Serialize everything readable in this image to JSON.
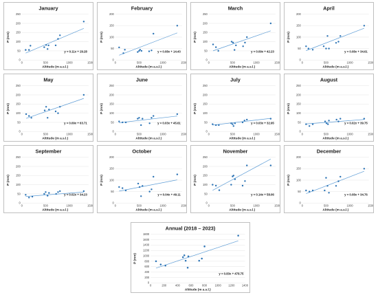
{
  "colors": {
    "marker": "#2e75b6",
    "trend": "#5b9bd5",
    "grid": "#e3e3e3",
    "border": "#bfbfbf"
  },
  "chart_data": [
    {
      "type": "scatter",
      "title": "January",
      "xlabel": "Altitude (m a.s.l.)",
      "ylabel": "P (mm)",
      "xlim": [
        0,
        1400
      ],
      "xticks": [
        0,
        500,
        1000,
        1500
      ],
      "ylim": [
        0,
        250
      ],
      "yticks": [
        0,
        50,
        100,
        150,
        200,
        250
      ],
      "points": [
        [
          80,
          55
        ],
        [
          150,
          55
        ],
        [
          180,
          78
        ],
        [
          470,
          70
        ],
        [
          510,
          82
        ],
        [
          540,
          60
        ],
        [
          560,
          80
        ],
        [
          710,
          80
        ],
        [
          760,
          115
        ],
        [
          800,
          135
        ],
        [
          1300,
          210
        ]
      ],
      "trendline": {
        "slope": 0.11,
        "intercept": 29.28
      },
      "equation": "y = 0.11x + 29.28"
    },
    {
      "type": "scatter",
      "title": "February",
      "xlabel": "Altitude (m a.s.l.)",
      "ylabel": "P (mm)",
      "xlim": [
        0,
        1400
      ],
      "xticks": [
        0,
        500,
        1000,
        1500
      ],
      "ylim": [
        0,
        200
      ],
      "yticks": [
        0,
        50,
        100,
        150,
        200
      ],
      "points": [
        [
          80,
          55
        ],
        [
          170,
          30
        ],
        [
          200,
          45
        ],
        [
          470,
          35
        ],
        [
          500,
          40
        ],
        [
          520,
          45
        ],
        [
          550,
          40
        ],
        [
          710,
          38
        ],
        [
          760,
          42
        ],
        [
          800,
          115
        ],
        [
          1300,
          150
        ]
      ],
      "trendline": {
        "slope": 0.08,
        "intercept": 14.43
      },
      "equation": "y = 0.08x + 14.43"
    },
    {
      "type": "scatter",
      "title": "March",
      "xlabel": "Altitude (m a.s.l.)",
      "ylabel": "P (mm)",
      "xlim": [
        0,
        1400
      ],
      "xticks": [
        0,
        500,
        1000,
        1500
      ],
      "ylim": [
        0,
        250
      ],
      "yticks": [
        0,
        50,
        100,
        150,
        200,
        250
      ],
      "points": [
        [
          90,
          85
        ],
        [
          150,
          70
        ],
        [
          200,
          50
        ],
        [
          480,
          100
        ],
        [
          510,
          95
        ],
        [
          540,
          55
        ],
        [
          570,
          80
        ],
        [
          720,
          75
        ],
        [
          760,
          95
        ],
        [
          800,
          125
        ],
        [
          1300,
          200
        ]
      ],
      "trendline": {
        "slope": 0.09,
        "intercept": 42.23
      },
      "equation": "y = 0.09x + 42.23"
    },
    {
      "type": "scatter",
      "title": "April",
      "xlabel": "Altitude (m a.s.l.)",
      "ylabel": "P (mm)",
      "xlim": [
        0,
        1400
      ],
      "xticks": [
        0,
        500,
        1000,
        1500
      ],
      "ylim": [
        0,
        200
      ],
      "yticks": [
        0,
        50,
        100,
        150,
        200
      ],
      "points": [
        [
          80,
          60
        ],
        [
          130,
          50
        ],
        [
          220,
          45
        ],
        [
          450,
          60
        ],
        [
          500,
          50
        ],
        [
          530,
          105
        ],
        [
          560,
          50
        ],
        [
          710,
          75
        ],
        [
          760,
          80
        ],
        [
          800,
          105
        ],
        [
          1300,
          150
        ]
      ],
      "trendline": {
        "slope": 0.08,
        "intercept": 34.61
      },
      "equation": "y = 0.08x + 34.61"
    },
    {
      "type": "scatter",
      "title": "May",
      "xlabel": "Altitude (m a.s.l.)",
      "ylabel": "P (mm)",
      "xlim": [
        0,
        1400
      ],
      "xticks": [
        0,
        500,
        1000,
        1500
      ],
      "ylim": [
        0,
        250
      ],
      "yticks": [
        0,
        50,
        100,
        150,
        200,
        250
      ],
      "points": [
        [
          90,
          95
        ],
        [
          150,
          85
        ],
        [
          200,
          75
        ],
        [
          480,
          115
        ],
        [
          510,
          135
        ],
        [
          540,
          75
        ],
        [
          570,
          120
        ],
        [
          710,
          110
        ],
        [
          760,
          100
        ],
        [
          800,
          135
        ],
        [
          1300,
          200
        ]
      ],
      "trendline": {
        "slope": 0.09,
        "intercept": 63.71
      },
      "equation": "y = 0.09x + 63.71"
    },
    {
      "type": "scatter",
      "title": "June",
      "xlabel": "Altitude (m a.s.l.)",
      "ylabel": "P (mm)",
      "xlim": [
        0,
        1400
      ],
      "xticks": [
        0,
        500,
        1000,
        1500
      ],
      "ylim": [
        0,
        250
      ],
      "yticks": [
        0,
        50,
        100,
        150,
        200,
        250
      ],
      "points": [
        [
          80,
          55
        ],
        [
          150,
          50
        ],
        [
          220,
          50
        ],
        [
          470,
          70
        ],
        [
          500,
          75
        ],
        [
          540,
          35
        ],
        [
          570,
          70
        ],
        [
          720,
          45
        ],
        [
          760,
          75
        ],
        [
          800,
          85
        ],
        [
          1300,
          95
        ]
      ],
      "trendline": {
        "slope": 0.03,
        "intercept": 45.61
      },
      "equation": "y = 0.03x + 45.61"
    },
    {
      "type": "scatter",
      "title": "July",
      "xlabel": "Altitude (m a.s.l.)",
      "ylabel": "P (mm)",
      "xlim": [
        0,
        1400
      ],
      "xticks": [
        0,
        500,
        1000,
        1500
      ],
      "ylim": [
        0,
        250
      ],
      "yticks": [
        0,
        50,
        100,
        150,
        200,
        250
      ],
      "points": [
        [
          80,
          40
        ],
        [
          150,
          35
        ],
        [
          210,
          35
        ],
        [
          470,
          45
        ],
        [
          500,
          40
        ],
        [
          520,
          30
        ],
        [
          550,
          45
        ],
        [
          710,
          50
        ],
        [
          750,
          60
        ],
        [
          800,
          65
        ],
        [
          1300,
          70
        ]
      ],
      "trendline": {
        "slope": 0.03,
        "intercept": 32.95
      },
      "equation": "y = 0.03x + 32.95"
    },
    {
      "type": "scatter",
      "title": "August",
      "xlabel": "Altitude (m a.s.l.)",
      "ylabel": "P (mm)",
      "xlim": [
        0,
        1400
      ],
      "xticks": [
        0,
        500,
        1000,
        1500
      ],
      "ylim": [
        0,
        250
      ],
      "yticks": [
        0,
        50,
        100,
        150,
        200,
        250
      ],
      "points": [
        [
          80,
          40
        ],
        [
          150,
          30
        ],
        [
          220,
          40
        ],
        [
          480,
          55
        ],
        [
          510,
          45
        ],
        [
          540,
          40
        ],
        [
          560,
          60
        ],
        [
          720,
          65
        ],
        [
          760,
          55
        ],
        [
          800,
          70
        ],
        [
          1300,
          70
        ]
      ],
      "trendline": {
        "slope": 0.02,
        "intercept": 39.75
      },
      "equation": "y = 0.02x + 39.75"
    },
    {
      "type": "scatter",
      "title": "September",
      "xlabel": "Altitude (m a.s.l.)",
      "ylabel": "P (mm)",
      "xlim": [
        0,
        1400
      ],
      "xticks": [
        0,
        500,
        1000,
        1500
      ],
      "ylim": [
        0,
        250
      ],
      "yticks": [
        0,
        50,
        100,
        150,
        200,
        250
      ],
      "points": [
        [
          80,
          45
        ],
        [
          150,
          30
        ],
        [
          220,
          35
        ],
        [
          470,
          50
        ],
        [
          500,
          60
        ],
        [
          540,
          40
        ],
        [
          570,
          55
        ],
        [
          720,
          50
        ],
        [
          760,
          60
        ],
        [
          800,
          65
        ],
        [
          1300,
          65
        ]
      ],
      "trendline": {
        "slope": 0.02,
        "intercept": 34.23
      },
      "equation": "y = 0.02x + 34.23"
    },
    {
      "type": "scatter",
      "title": "October",
      "xlabel": "Altitude (m a.s.l.)",
      "ylabel": "P (mm)",
      "xlim": [
        0,
        1400
      ],
      "xticks": [
        0,
        500,
        1000,
        1500
      ],
      "ylim": [
        0,
        200
      ],
      "yticks": [
        0,
        50,
        100,
        150,
        200
      ],
      "points": [
        [
          80,
          70
        ],
        [
          150,
          65
        ],
        [
          220,
          55
        ],
        [
          480,
          85
        ],
        [
          510,
          70
        ],
        [
          540,
          30
        ],
        [
          570,
          75
        ],
        [
          720,
          50
        ],
        [
          760,
          60
        ],
        [
          800,
          115
        ],
        [
          1300,
          125
        ]
      ],
      "trendline": {
        "slope": 0.04,
        "intercept": 49.11
      },
      "equation": "y = 0.04x + 49.11"
    },
    {
      "type": "scatter",
      "title": "November",
      "xlabel": "Altitude (m a.s.l.)",
      "ylabel": "P (mm)",
      "xlim": [
        0,
        1400
      ],
      "xticks": [
        0,
        500,
        1000,
        1500
      ],
      "ylim": [
        0,
        250
      ],
      "yticks": [
        0,
        50,
        100,
        150,
        200,
        250
      ],
      "points": [
        [
          80,
          100
        ],
        [
          150,
          95
        ],
        [
          220,
          70
        ],
        [
          470,
          100
        ],
        [
          500,
          145
        ],
        [
          520,
          150
        ],
        [
          550,
          130
        ],
        [
          710,
          95
        ],
        [
          760,
          120
        ],
        [
          800,
          205
        ],
        [
          1300,
          205
        ]
      ],
      "trendline": {
        "slope": 0.14,
        "intercept": 58.06
      },
      "equation": "y = 0.14x + 58.06"
    },
    {
      "type": "scatter",
      "title": "December",
      "xlabel": "Altitude (m a.s.l.)",
      "ylabel": "P (mm)",
      "xlim": [
        0,
        1400
      ],
      "xticks": [
        0,
        500,
        1000,
        1500
      ],
      "ylim": [
        0,
        200
      ],
      "yticks": [
        0,
        50,
        100,
        150,
        200
      ],
      "points": [
        [
          80,
          55
        ],
        [
          150,
          50
        ],
        [
          220,
          55
        ],
        [
          470,
          55
        ],
        [
          500,
          110
        ],
        [
          530,
          75
        ],
        [
          560,
          45
        ],
        [
          710,
          75
        ],
        [
          760,
          95
        ],
        [
          800,
          115
        ],
        [
          1300,
          150
        ]
      ],
      "trendline": {
        "slope": 0.08,
        "intercept": 34.76
      },
      "equation": "y = 0.08x + 34.76"
    },
    {
      "type": "scatter",
      "title": "Annual (2018 – 2023)",
      "xlabel": "Altitude (m a.s.l.)",
      "ylabel": "P (mm)",
      "xlim": [
        0,
        1400
      ],
      "xticks": [
        0,
        200,
        400,
        600,
        800,
        1000,
        1200,
        1400
      ],
      "ylim": [
        0,
        1800
      ],
      "yticks": [
        0,
        200,
        400,
        600,
        800,
        1000,
        1200,
        1400,
        1600,
        1800
      ],
      "points": [
        [
          80,
          800
        ],
        [
          150,
          680
        ],
        [
          220,
          640
        ],
        [
          480,
          950
        ],
        [
          500,
          1020
        ],
        [
          520,
          820
        ],
        [
          550,
          560
        ],
        [
          560,
          980
        ],
        [
          720,
          820
        ],
        [
          760,
          900
        ],
        [
          800,
          1350
        ],
        [
          1300,
          1750
        ]
      ],
      "trendline": {
        "slope": 0.83,
        "intercept": 478.75
      },
      "equation": "y = 0.83x + 478.75"
    }
  ]
}
